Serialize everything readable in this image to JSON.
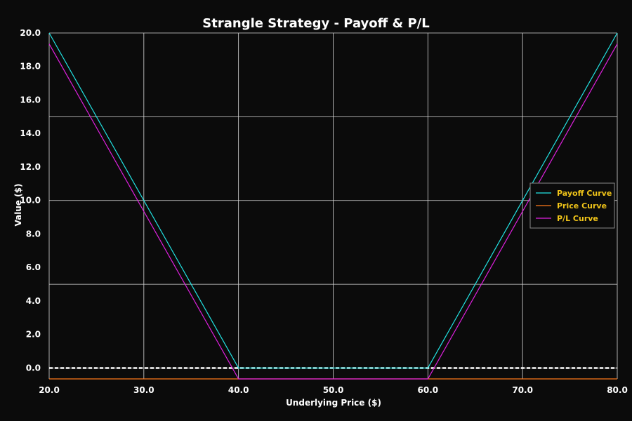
{
  "chart_data": {
    "type": "line",
    "title": "Strangle Strategy - Payoff & P/L",
    "xlabel": "Underlying Price ($)",
    "ylabel": "Value ($)",
    "xlim": [
      20,
      80
    ],
    "ylim": [
      -0.65,
      20
    ],
    "xticks": [
      "20.0",
      "30.0",
      "40.0",
      "50.0",
      "60.0",
      "70.0",
      "80.0"
    ],
    "yticks": [
      "0.0",
      "2.0",
      "4.0",
      "6.0",
      "8.0",
      "10.0",
      "12.0",
      "14.0",
      "16.0",
      "18.0",
      "20.0"
    ],
    "grid": true,
    "legend_position": "right",
    "series": [
      {
        "name": "Payoff Curve",
        "color": "#22e5e5",
        "x": [
          20,
          40,
          60,
          80
        ],
        "y": [
          20,
          0,
          0,
          20
        ]
      },
      {
        "name": "Price Curve",
        "color": "#ff7a1a",
        "x": [
          20,
          80
        ],
        "y": [
          -0.65,
          -0.65
        ]
      },
      {
        "name": "P/L Curve",
        "color": "#e020e0",
        "x": [
          20,
          40,
          60,
          80
        ],
        "y": [
          19.35,
          -0.65,
          -0.65,
          19.35
        ]
      }
    ],
    "reference_line": {
      "y": 0,
      "color": "#ffffff",
      "style": "dashed"
    }
  }
}
